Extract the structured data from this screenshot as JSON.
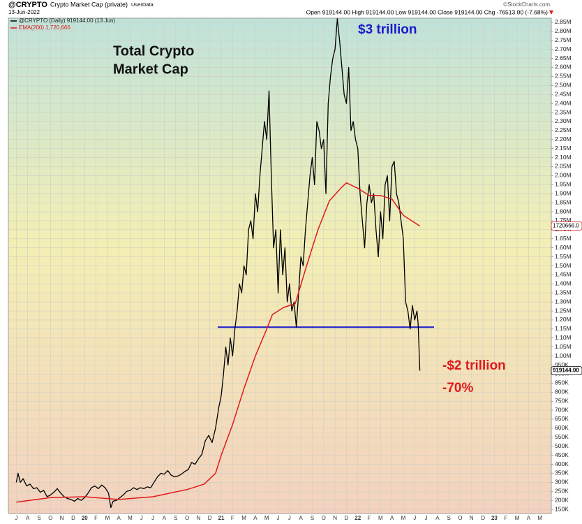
{
  "chart_data": {
    "type": "line",
    "header": {
      "symbol": "@CRYPTO",
      "name": "Crypto Market Cap (private)",
      "source": "UserData",
      "date": "13-Jun-2022",
      "quote": "Open 919144.00 High 919144.00 Low 919144.00 Close 919144.00 Chg -76513.00 (-7.68%)",
      "credit": "©StockCharts.com"
    },
    "annotations": [
      {
        "text": "Total Crypto",
        "color": "#111111"
      },
      {
        "text": "Market Cap",
        "color": "#111111"
      },
      {
        "text": "$3 trillion",
        "color": "#1a1acc"
      },
      {
        "text": "-$2 trillion",
        "color": "#e0191c"
      },
      {
        "text": "-70%",
        "color": "#e0191c"
      }
    ],
    "series": [
      {
        "name": "@CRYPTO (Daily) 919144.00 (13 Jun)",
        "color": "#000000",
        "last_label": "919144.00",
        "x": [
          0,
          0.15,
          0.35,
          0.6,
          0.9,
          1.2,
          1.5,
          1.8,
          2.1,
          2.4,
          2.7,
          3,
          3.3,
          3.6,
          3.9,
          4.2,
          4.5,
          4.8,
          5.1,
          5.4,
          5.7,
          6,
          6.3,
          6.6,
          6.9,
          7.2,
          7.5,
          7.8,
          8.1,
          8.3,
          8.5,
          8.8,
          9.1,
          9.4,
          9.7,
          10,
          10.3,
          10.6,
          10.9,
          11.2,
          11.5,
          11.8,
          12.1,
          12.4,
          12.7,
          13,
          13.3,
          13.6,
          13.9,
          14.2,
          14.5,
          14.8,
          15.1,
          15.4,
          15.7,
          16,
          16.3,
          16.6,
          16.9,
          17.2,
          17.5,
          17.8,
          18,
          18.2,
          18.4,
          18.6,
          18.8,
          19,
          19.2,
          19.4,
          19.6,
          19.8,
          20,
          20.2,
          20.4,
          20.6,
          20.8,
          21,
          21.2,
          21.4,
          21.6,
          21.8,
          22,
          22.2,
          22.4,
          22.6,
          22.8,
          23,
          23.2,
          23.4,
          23.6,
          23.8,
          24,
          24.2,
          24.4,
          24.6,
          24.8,
          25,
          25.2,
          25.4,
          25.6,
          25.8,
          26,
          26.2,
          26.4,
          26.6,
          26.8,
          27,
          27.2,
          27.4,
          27.6,
          27.8,
          28,
          28.2,
          28.4,
          28.6,
          28.8,
          29,
          29.2,
          29.4,
          29.6,
          29.8,
          30,
          30.2,
          30.4,
          30.6,
          30.8,
          31,
          31.2,
          31.4,
          31.6,
          31.8,
          32,
          32.2,
          32.4,
          32.6,
          32.8,
          33,
          33.2,
          33.4,
          33.6,
          33.8,
          34,
          34.2,
          34.4,
          34.6,
          34.8,
          35,
          35.2,
          35.3,
          35.45
        ],
        "values": [
          300000,
          350000,
          300000,
          320000,
          280000,
          290000,
          265000,
          270000,
          245000,
          255000,
          220000,
          230000,
          245000,
          265000,
          240000,
          220000,
          210000,
          205000,
          195000,
          210000,
          200000,
          215000,
          240000,
          270000,
          280000,
          265000,
          285000,
          270000,
          240000,
          160000,
          195000,
          200000,
          215000,
          230000,
          250000,
          255000,
          270000,
          260000,
          270000,
          265000,
          275000,
          270000,
          300000,
          330000,
          350000,
          345000,
          365000,
          340000,
          330000,
          335000,
          345000,
          360000,
          370000,
          410000,
          400000,
          430000,
          455000,
          530000,
          560000,
          520000,
          600000,
          720000,
          780000,
          900000,
          1050000,
          950000,
          1100000,
          1000000,
          1150000,
          1250000,
          1400000,
          1350000,
          1500000,
          1450000,
          1700000,
          1750000,
          1650000,
          1900000,
          1800000,
          2000000,
          2150000,
          2300000,
          2200000,
          2470000,
          2000000,
          1600000,
          1700000,
          1350000,
          1700000,
          1450000,
          1600000,
          1300000,
          1400000,
          1250000,
          1300000,
          1160000,
          1350000,
          1550000,
          1500000,
          1700000,
          1850000,
          2000000,
          2100000,
          1950000,
          2300000,
          2250000,
          2150000,
          2200000,
          1900000,
          2400000,
          2550000,
          2650000,
          2700000,
          2870000,
          2750000,
          2600000,
          2450000,
          2400000,
          2600000,
          2250000,
          2300000,
          2200000,
          2150000,
          1900000,
          1750000,
          1600000,
          1850000,
          1950000,
          1850000,
          1900000,
          1700000,
          1550000,
          1800000,
          1650000,
          1950000,
          2000000,
          1750000,
          2050000,
          2080000,
          1900000,
          1850000,
          1750000,
          1650000,
          1300000,
          1250000,
          1150000,
          1280000,
          1200000,
          1250000,
          1180000,
          919144
        ]
      },
      {
        "name": "EMA(200) 1,720,666",
        "color": "#e0191c",
        "last_label": "1720666.0",
        "x": [
          0,
          3,
          6,
          9,
          12,
          15,
          16.5,
          17.5,
          18,
          19,
          20,
          21,
          22,
          22.5,
          23.5,
          24.5,
          25.5,
          26.5,
          27.5,
          28.5,
          29,
          30,
          31,
          32,
          33,
          34,
          35.45
        ],
        "values": [
          190000,
          215000,
          220000,
          205000,
          220000,
          260000,
          290000,
          350000,
          450000,
          620000,
          820000,
          1000000,
          1150000,
          1230000,
          1270000,
          1290000,
          1500000,
          1700000,
          1860000,
          1930000,
          1960000,
          1930000,
          1890000,
          1890000,
          1870000,
          1780000,
          1720666
        ]
      }
    ],
    "hline": {
      "value": 1160000,
      "color": "#1a1acc"
    },
    "xlim": [
      -0.7,
      47
    ],
    "xticks": [
      {
        "value": 0,
        "label": "J"
      },
      {
        "value": 1,
        "label": "A"
      },
      {
        "value": 2,
        "label": "S"
      },
      {
        "value": 3,
        "label": "O"
      },
      {
        "value": 4,
        "label": "N"
      },
      {
        "value": 5,
        "label": "D"
      },
      {
        "value": 6,
        "label": "20"
      },
      {
        "value": 7,
        "label": "F"
      },
      {
        "value": 8,
        "label": "M"
      },
      {
        "value": 9,
        "label": "A"
      },
      {
        "value": 10,
        "label": "M"
      },
      {
        "value": 11,
        "label": "J"
      },
      {
        "value": 12,
        "label": "J"
      },
      {
        "value": 13,
        "label": "A"
      },
      {
        "value": 14,
        "label": "S"
      },
      {
        "value": 15,
        "label": "O"
      },
      {
        "value": 16,
        "label": "N"
      },
      {
        "value": 17,
        "label": "D"
      },
      {
        "value": 18,
        "label": "21"
      },
      {
        "value": 19,
        "label": "F"
      },
      {
        "value": 20,
        "label": "M"
      },
      {
        "value": 21,
        "label": "A"
      },
      {
        "value": 22,
        "label": "M"
      },
      {
        "value": 23,
        "label": "J"
      },
      {
        "value": 24,
        "label": "J"
      },
      {
        "value": 25,
        "label": "A"
      },
      {
        "value": 26,
        "label": "S"
      },
      {
        "value": 27,
        "label": "O"
      },
      {
        "value": 28,
        "label": "N"
      },
      {
        "value": 29,
        "label": "D"
      },
      {
        "value": 30,
        "label": "22"
      },
      {
        "value": 31,
        "label": "F"
      },
      {
        "value": 32,
        "label": "M"
      },
      {
        "value": 33,
        "label": "A"
      },
      {
        "value": 34,
        "label": "M"
      },
      {
        "value": 35,
        "label": "J"
      },
      {
        "value": 36,
        "label": "J"
      },
      {
        "value": 37,
        "label": "A"
      },
      {
        "value": 38,
        "label": "S"
      },
      {
        "value": 39,
        "label": "O"
      },
      {
        "value": 40,
        "label": "N"
      },
      {
        "value": 41,
        "label": "D"
      },
      {
        "value": 42,
        "label": "23"
      },
      {
        "value": 43,
        "label": "F"
      },
      {
        "value": 44,
        "label": "M"
      },
      {
        "value": 45,
        "label": "A"
      },
      {
        "value": 46,
        "label": "M"
      }
    ],
    "ylim": [
      127000,
      2873000
    ],
    "yticks": [
      {
        "value": 150000,
        "label": "150K"
      },
      {
        "value": 200000,
        "label": "200K"
      },
      {
        "value": 250000,
        "label": "250K"
      },
      {
        "value": 300000,
        "label": "300K"
      },
      {
        "value": 350000,
        "label": "350K"
      },
      {
        "value": 400000,
        "label": "400K"
      },
      {
        "value": 450000,
        "label": "450K"
      },
      {
        "value": 500000,
        "label": "500K"
      },
      {
        "value": 550000,
        "label": "550K"
      },
      {
        "value": 600000,
        "label": "600K"
      },
      {
        "value": 650000,
        "label": "650K"
      },
      {
        "value": 700000,
        "label": "700K"
      },
      {
        "value": 750000,
        "label": "750K"
      },
      {
        "value": 800000,
        "label": "800K"
      },
      {
        "value": 850000,
        "label": "850K"
      },
      {
        "value": 900000,
        "label": "900K"
      },
      {
        "value": 950000,
        "label": "950K"
      },
      {
        "value": 1000000,
        "label": "1.00M"
      },
      {
        "value": 1050000,
        "label": "1.05M"
      },
      {
        "value": 1100000,
        "label": "1.10M"
      },
      {
        "value": 1150000,
        "label": "1.15M"
      },
      {
        "value": 1200000,
        "label": "1.20M"
      },
      {
        "value": 1250000,
        "label": "1.25M"
      },
      {
        "value": 1300000,
        "label": "1.30M"
      },
      {
        "value": 1350000,
        "label": "1.35M"
      },
      {
        "value": 1400000,
        "label": "1.40M"
      },
      {
        "value": 1450000,
        "label": "1.45M"
      },
      {
        "value": 1500000,
        "label": "1.50M"
      },
      {
        "value": 1550000,
        "label": "1.55M"
      },
      {
        "value": 1600000,
        "label": "1.60M"
      },
      {
        "value": 1650000,
        "label": "1.65M"
      },
      {
        "value": 1700000,
        "label": "1.70M"
      },
      {
        "value": 1750000,
        "label": "1.75M"
      },
      {
        "value": 1800000,
        "label": "1.80M"
      },
      {
        "value": 1850000,
        "label": "1.85M"
      },
      {
        "value": 1900000,
        "label": "1.90M"
      },
      {
        "value": 1950000,
        "label": "1.95M"
      },
      {
        "value": 2000000,
        "label": "2.00M"
      },
      {
        "value": 2050000,
        "label": "2.05M"
      },
      {
        "value": 2100000,
        "label": "2.10M"
      },
      {
        "value": 2150000,
        "label": "2.15M"
      },
      {
        "value": 2200000,
        "label": "2.20M"
      },
      {
        "value": 2250000,
        "label": "2.25M"
      },
      {
        "value": 2300000,
        "label": "2.30M"
      },
      {
        "value": 2350000,
        "label": "2.35M"
      },
      {
        "value": 2400000,
        "label": "2.40M"
      },
      {
        "value": 2450000,
        "label": "2.45M"
      },
      {
        "value": 2500000,
        "label": "2.50M"
      },
      {
        "value": 2550000,
        "label": "2.55M"
      },
      {
        "value": 2600000,
        "label": "2.60M"
      },
      {
        "value": 2650000,
        "label": "2.65M"
      },
      {
        "value": 2700000,
        "label": "2.70M"
      },
      {
        "value": 2750000,
        "label": "2.75M"
      },
      {
        "value": 2800000,
        "label": "2.80M"
      },
      {
        "value": 2850000,
        "label": "2.85M"
      }
    ],
    "grid": true
  }
}
